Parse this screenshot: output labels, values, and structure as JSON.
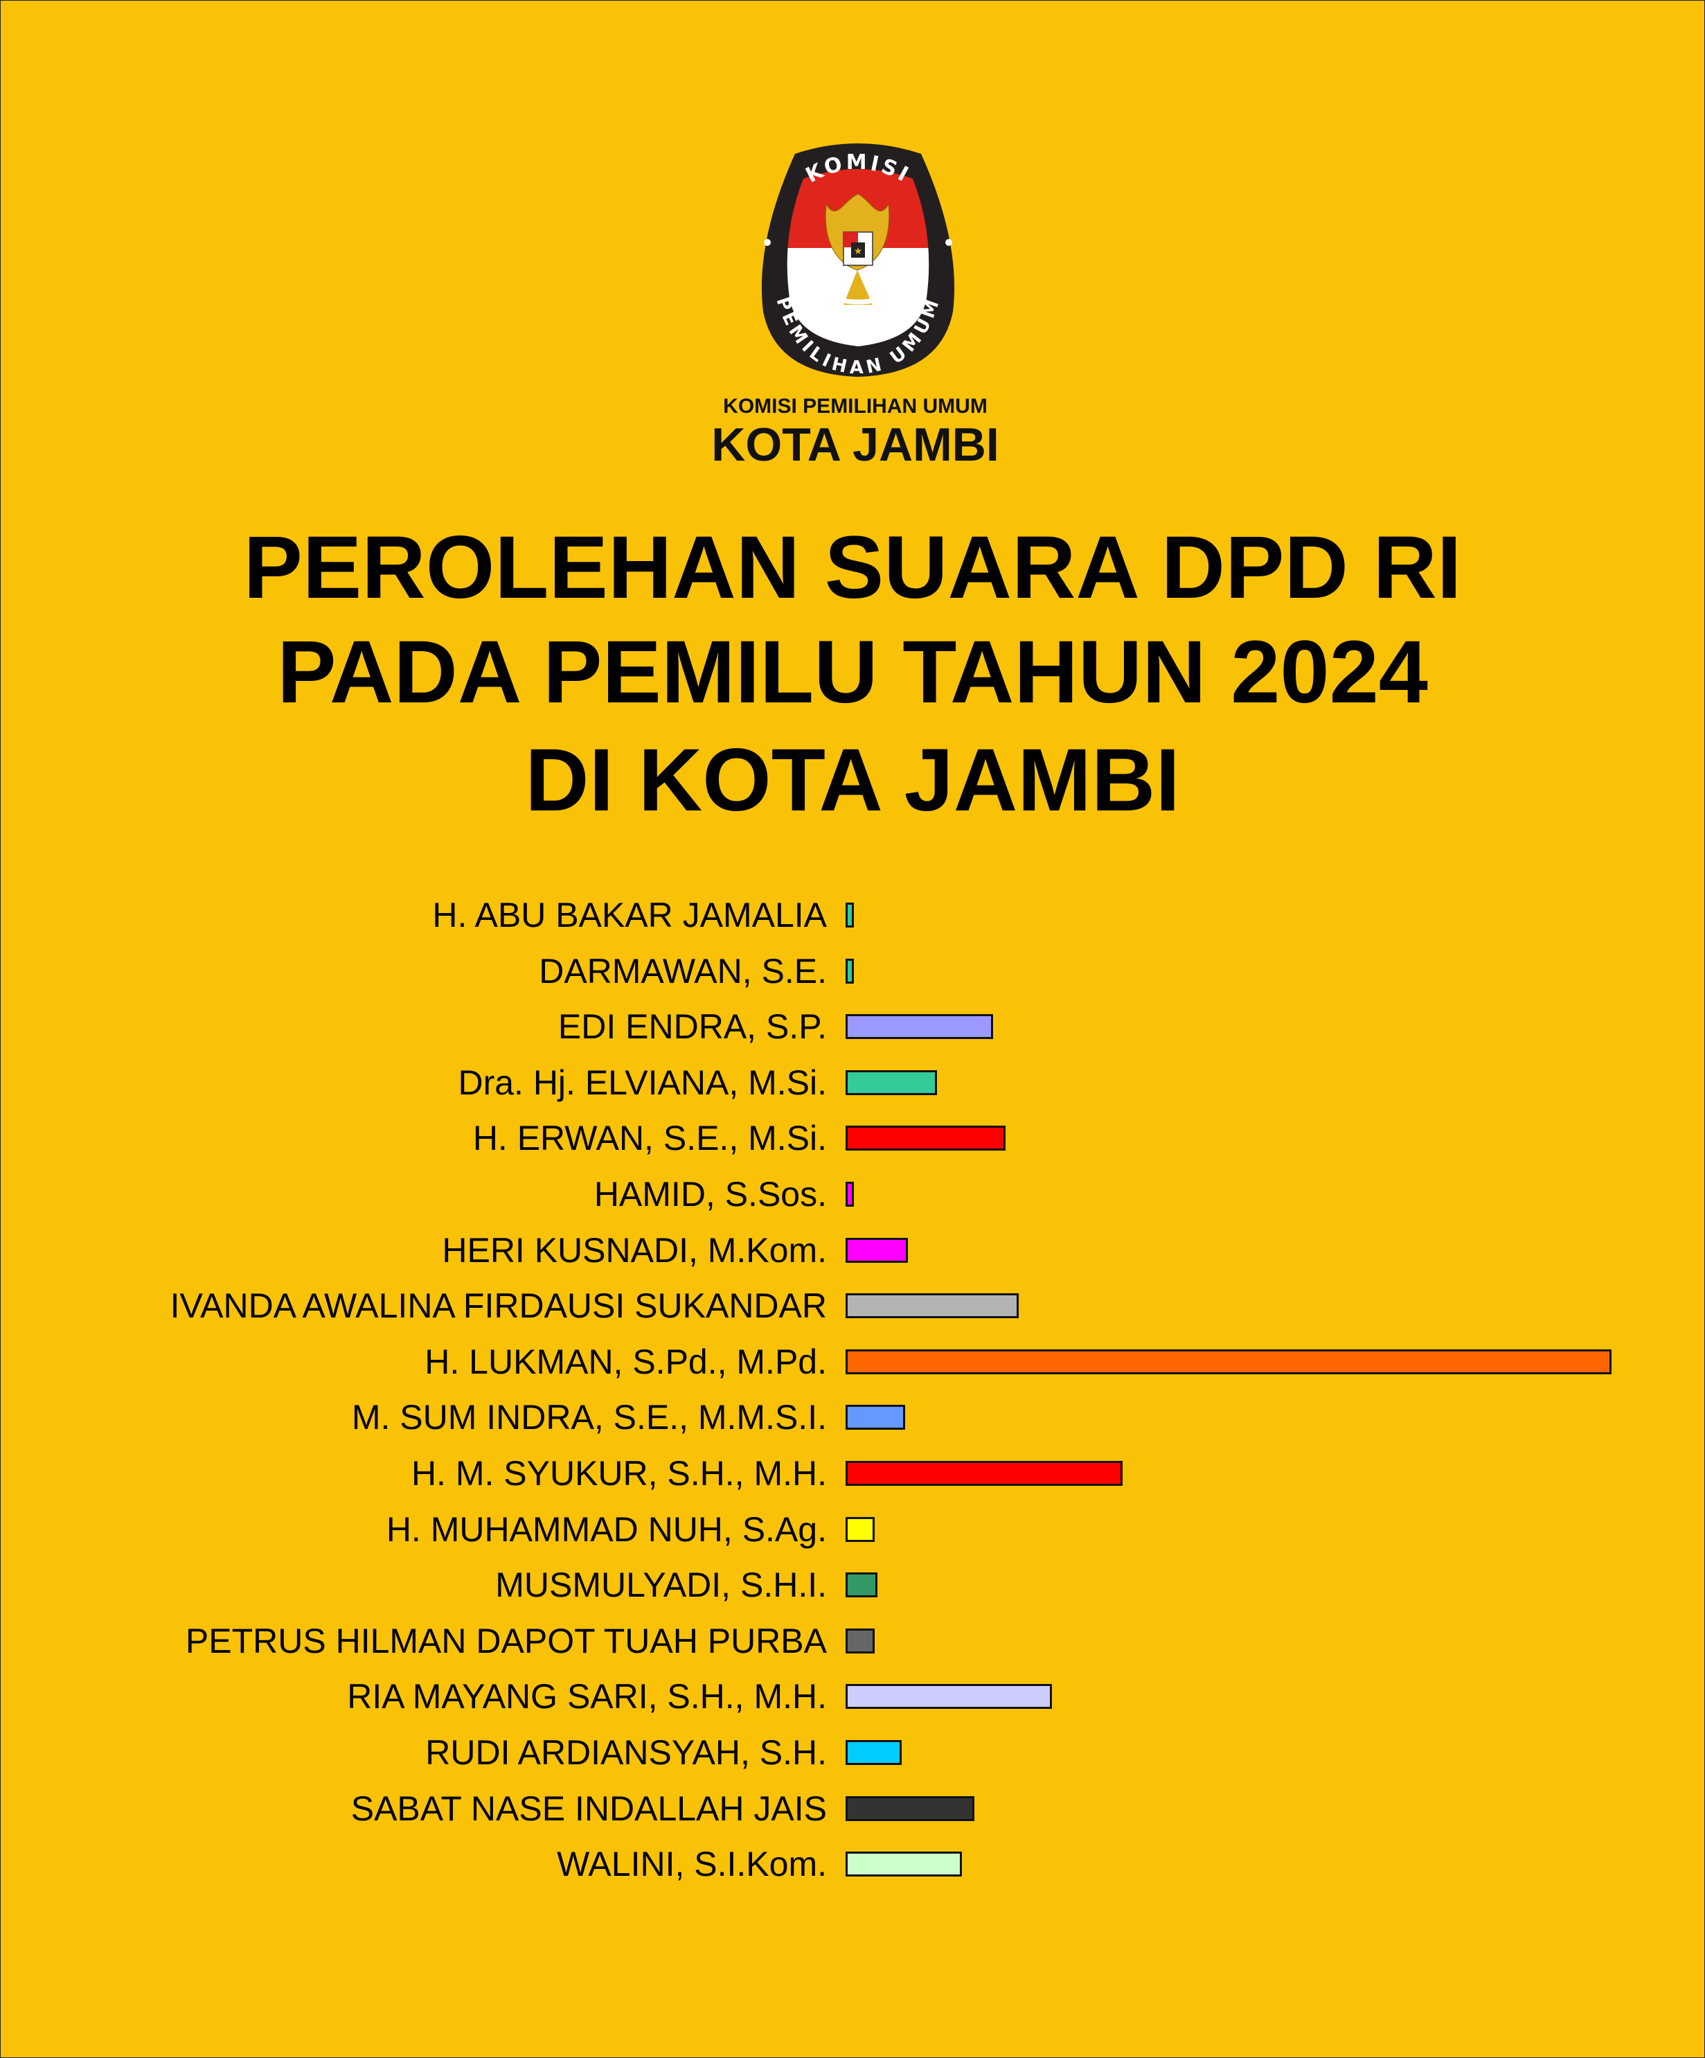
{
  "logo": {
    "ring_top": "KOMISI",
    "ring_bottom": "PEMILIHAN UMUM",
    "motto": "BHINNEKA TUNGGAL IKA"
  },
  "org": {
    "line1": "KOMISI PEMILIHAN UMUM",
    "line2": "KOTA JAMBI"
  },
  "colors": {
    "background": "#F9C206",
    "bar_border": "#111111"
  },
  "chart_data": {
    "type": "bar",
    "orientation": "horizontal",
    "title": [
      "PEROLEHAN SUARA DPD RI",
      "PADA PEMILU TAHUN 2024",
      "DI KOTA JAMBI"
    ],
    "xlabel": "",
    "ylabel": "",
    "grid": false,
    "value_scale": "relative, longest bar = 100 (no values printed)",
    "categories": [
      "H. ABU BAKAR JAMALIA",
      "DARMAWAN, S.E.",
      "EDI ENDRA, S.P.",
      "Dra. Hj. ELVIANA, M.Si.",
      "H. ERWAN, S.E., M.Si.",
      "HAMID, S.Sos.",
      "HERI KUSNADI, M.Kom.",
      "IVANDA AWALINA FIRDAUSI SUKANDAR",
      "H. LUKMAN, S.Pd., M.Pd.",
      "M. SUM INDRA, S.E., M.M.S.I.",
      "H. M. SYUKUR, S.H., M.H.",
      "H. MUHAMMAD NUH, S.Ag.",
      "MUSMULYADI, S.H.I.",
      "PETRUS HILMAN DAPOT TUAH PURBA",
      "RIA MAYANG SARI, S.H., M.H.",
      "RUDI ARDIANSYAH, S.H.",
      "SABAT NASE INDALLAH JAIS",
      "WALINI, S.I.Kom."
    ],
    "values": [
      1.1,
      1.1,
      19.3,
      11.9,
      20.9,
      1.1,
      8.1,
      22.6,
      100,
      7.8,
      36.2,
      3.8,
      4.2,
      3.8,
      26.9,
      7.3,
      16.8,
      15.2
    ],
    "bar_colors": [
      "#33CC99",
      "#33CC99",
      "#9999FF",
      "#33CC99",
      "#FF0000",
      "#FF00FF",
      "#FF00FF",
      "#B3B3B3",
      "#FF6600",
      "#6699FF",
      "#FF0000",
      "#FFFF00",
      "#339966",
      "#666666",
      "#CCCCFF",
      "#00CCFF",
      "#333333",
      "#CCFFCC"
    ]
  }
}
